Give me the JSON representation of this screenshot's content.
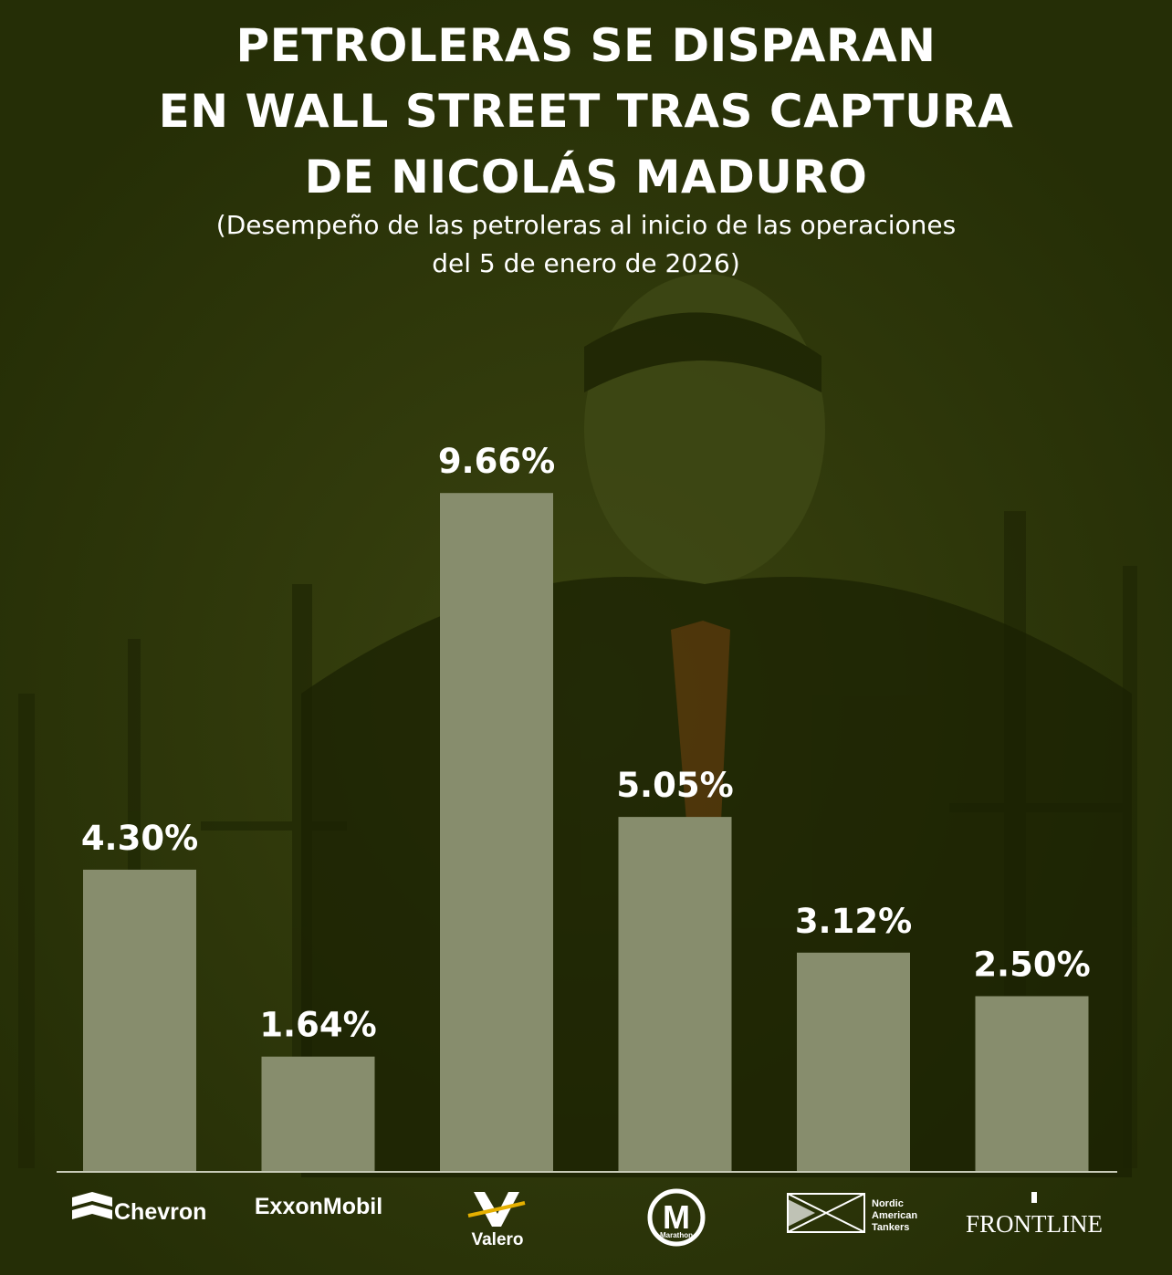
{
  "title_lines": [
    "PETROLERAS SE DISPARAN",
    "EN WALL STREET TRAS CAPTURA",
    "DE NICOLÁS MADURO"
  ],
  "subtitle_lines": [
    "(Desempeño de las petroleras al inicio de las operaciones",
    "del 5 de enero de 2026)"
  ],
  "colors": {
    "background": "#262f06",
    "bar": "#878d6d",
    "text": "#ffffff"
  },
  "chart_data": {
    "type": "bar",
    "categories": [
      "Chevron",
      "ExxonMobil",
      "Valero",
      "Marathon",
      "Nordic American Tankers",
      "FRONTLINE"
    ],
    "values": [
      4.3,
      1.64,
      9.66,
      5.05,
      3.12,
      2.5
    ],
    "value_labels": [
      "4.30%",
      "1.64%",
      "9.66%",
      "5.05%",
      "3.12%",
      "2.50%"
    ],
    "unit": "%",
    "ylim": [
      0,
      10
    ],
    "grid": false,
    "legend": "none",
    "logos": [
      {
        "icon": "chevron-logo",
        "text": "Chevron"
      },
      {
        "icon": "exxonmobil-logo",
        "text": "ExxonMobil"
      },
      {
        "icon": "valero-logo",
        "text": "Valero"
      },
      {
        "icon": "marathon-logo",
        "text": "Marathon"
      },
      {
        "icon": "nordic-american-tankers-logo",
        "text": "Nordic American Tankers",
        "text_lines": [
          "Nordic",
          "American",
          "Tankers"
        ]
      },
      {
        "icon": "frontline-logo",
        "text": "FRONTLINE"
      }
    ]
  }
}
